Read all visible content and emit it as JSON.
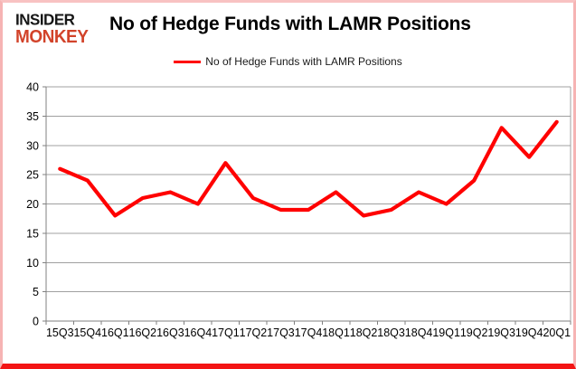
{
  "logo": {
    "line1": "INSIDER",
    "line2": "MONKEY"
  },
  "header": {
    "title": "No of Hedge Funds with LAMR Positions"
  },
  "legend": {
    "label": "No of Hedge Funds with LAMR Positions",
    "swatch_color": "#ff0000"
  },
  "chart_data": {
    "type": "line",
    "title": "No of Hedge Funds with LAMR Positions",
    "categories": [
      "15Q3",
      "15Q4",
      "16Q1",
      "16Q2",
      "16Q3",
      "16Q4",
      "17Q1",
      "17Q2",
      "17Q3",
      "17Q4",
      "18Q1",
      "18Q2",
      "18Q3",
      "18Q4",
      "19Q1",
      "19Q2",
      "19Q3",
      "19Q4",
      "20Q1"
    ],
    "series": [
      {
        "name": "No of Hedge Funds with LAMR Positions",
        "color": "#ff0000",
        "values": [
          26,
          24,
          18,
          21,
          22,
          20,
          27,
          21,
          19,
          19,
          22,
          18,
          19,
          22,
          20,
          24,
          33,
          28,
          34
        ]
      }
    ],
    "xlabel": "",
    "ylabel": "",
    "ylim": [
      0,
      40
    ],
    "yticks": [
      0,
      5,
      10,
      15,
      20,
      25,
      30,
      35,
      40
    ],
    "grid": true,
    "legend_position": "top-center",
    "grid_color": "#a0a0a0",
    "axis_color": "#808080"
  }
}
